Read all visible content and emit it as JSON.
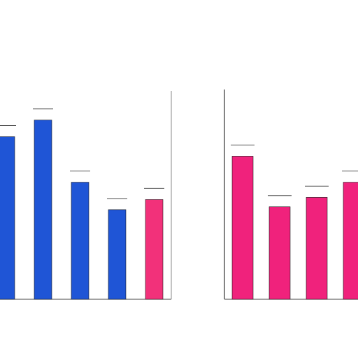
{
  "title_line1": "",
  "title_line2": "",
  "chart_data": [
    {
      "type": "bar",
      "title": "",
      "subtitle": "",
      "categories": [
        "",
        "",
        "",
        "",
        ""
      ],
      "values": [
        225,
        248,
        162,
        124,
        138
      ],
      "colors": [
        "#1f55d6",
        "#1f55d6",
        "#1f55d6",
        "#1f55d6",
        "#f2317a"
      ],
      "ylim": [
        0,
        300
      ],
      "grid": false,
      "yticks": []
    },
    {
      "type": "bar",
      "title": "",
      "subtitle": "",
      "categories": [
        "",
        "",
        "",
        ""
      ],
      "values": [
        198,
        128,
        141,
        162
      ],
      "colors": [
        "#f0227c",
        "#f0227c",
        "#f0227c",
        "#f0227c"
      ],
      "ylim": [
        0,
        300
      ],
      "grid": false,
      "yticks": []
    }
  ]
}
